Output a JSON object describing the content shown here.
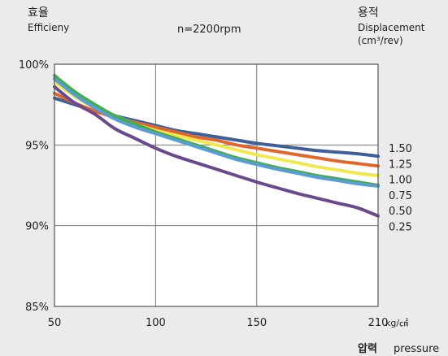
{
  "chart_data": {
    "type": "line",
    "title": "n=2200rpm",
    "ylabel_ko": "효율",
    "ylabel_en": "Efficieny",
    "legend_title_ko": "용적",
    "legend_title_en": "Displacement",
    "legend_unit": "(cm³/rev)",
    "xlabel_ko": "압력",
    "xlabel_en": "pressure",
    "x_unit": "kg/㎠",
    "xlim": [
      50,
      210
    ],
    "ylim": [
      85,
      100
    ],
    "x_ticks": [
      50,
      100,
      150,
      210
    ],
    "x_tick_labels": [
      "50",
      "100",
      "150",
      "210"
    ],
    "y_ticks": [
      85,
      90,
      95,
      100
    ],
    "y_tick_labels": [
      "85%",
      "90%",
      "95%",
      "100%"
    ],
    "grid": true,
    "legend_placement": "right",
    "x": [
      50,
      60,
      70,
      80,
      90,
      100,
      110,
      120,
      130,
      140,
      150,
      160,
      170,
      180,
      190,
      200,
      210
    ],
    "series": [
      {
        "name": "1.50",
        "color": "#3d5f9a",
        "values": [
          97.9,
          97.5,
          97.1,
          96.8,
          96.5,
          96.2,
          95.9,
          95.7,
          95.5,
          95.3,
          95.1,
          94.95,
          94.8,
          94.65,
          94.55,
          94.45,
          94.3
        ]
      },
      {
        "name": "1.25",
        "color": "#e0662a",
        "values": [
          98.2,
          97.6,
          97.1,
          96.7,
          96.4,
          96.1,
          95.8,
          95.5,
          95.3,
          95.0,
          94.8,
          94.6,
          94.4,
          94.2,
          94.0,
          93.85,
          93.7
        ]
      },
      {
        "name": "1.00",
        "color": "#f0e84e",
        "values": [
          98.9,
          98.0,
          97.3,
          96.8,
          96.3,
          95.9,
          95.6,
          95.3,
          95.0,
          94.7,
          94.4,
          94.15,
          93.9,
          93.65,
          93.45,
          93.25,
          93.1
        ]
      },
      {
        "name": "0.75",
        "color": "#3fae52",
        "values": [
          99.3,
          98.3,
          97.5,
          96.8,
          96.3,
          95.8,
          95.4,
          95.0,
          94.6,
          94.2,
          93.9,
          93.6,
          93.35,
          93.1,
          92.9,
          92.7,
          92.5
        ]
      },
      {
        "name": "0.50",
        "color": "#5c9bd4",
        "values": [
          99.1,
          98.1,
          97.3,
          96.6,
          96.1,
          95.7,
          95.3,
          94.9,
          94.5,
          94.1,
          93.8,
          93.5,
          93.25,
          93.0,
          92.8,
          92.6,
          92.45
        ]
      },
      {
        "name": "0.25",
        "color": "#6a4a8c",
        "values": [
          98.6,
          97.6,
          96.9,
          96.0,
          95.4,
          94.8,
          94.3,
          93.9,
          93.5,
          93.1,
          92.7,
          92.35,
          92.0,
          91.7,
          91.4,
          91.1,
          90.6
        ]
      }
    ]
  }
}
